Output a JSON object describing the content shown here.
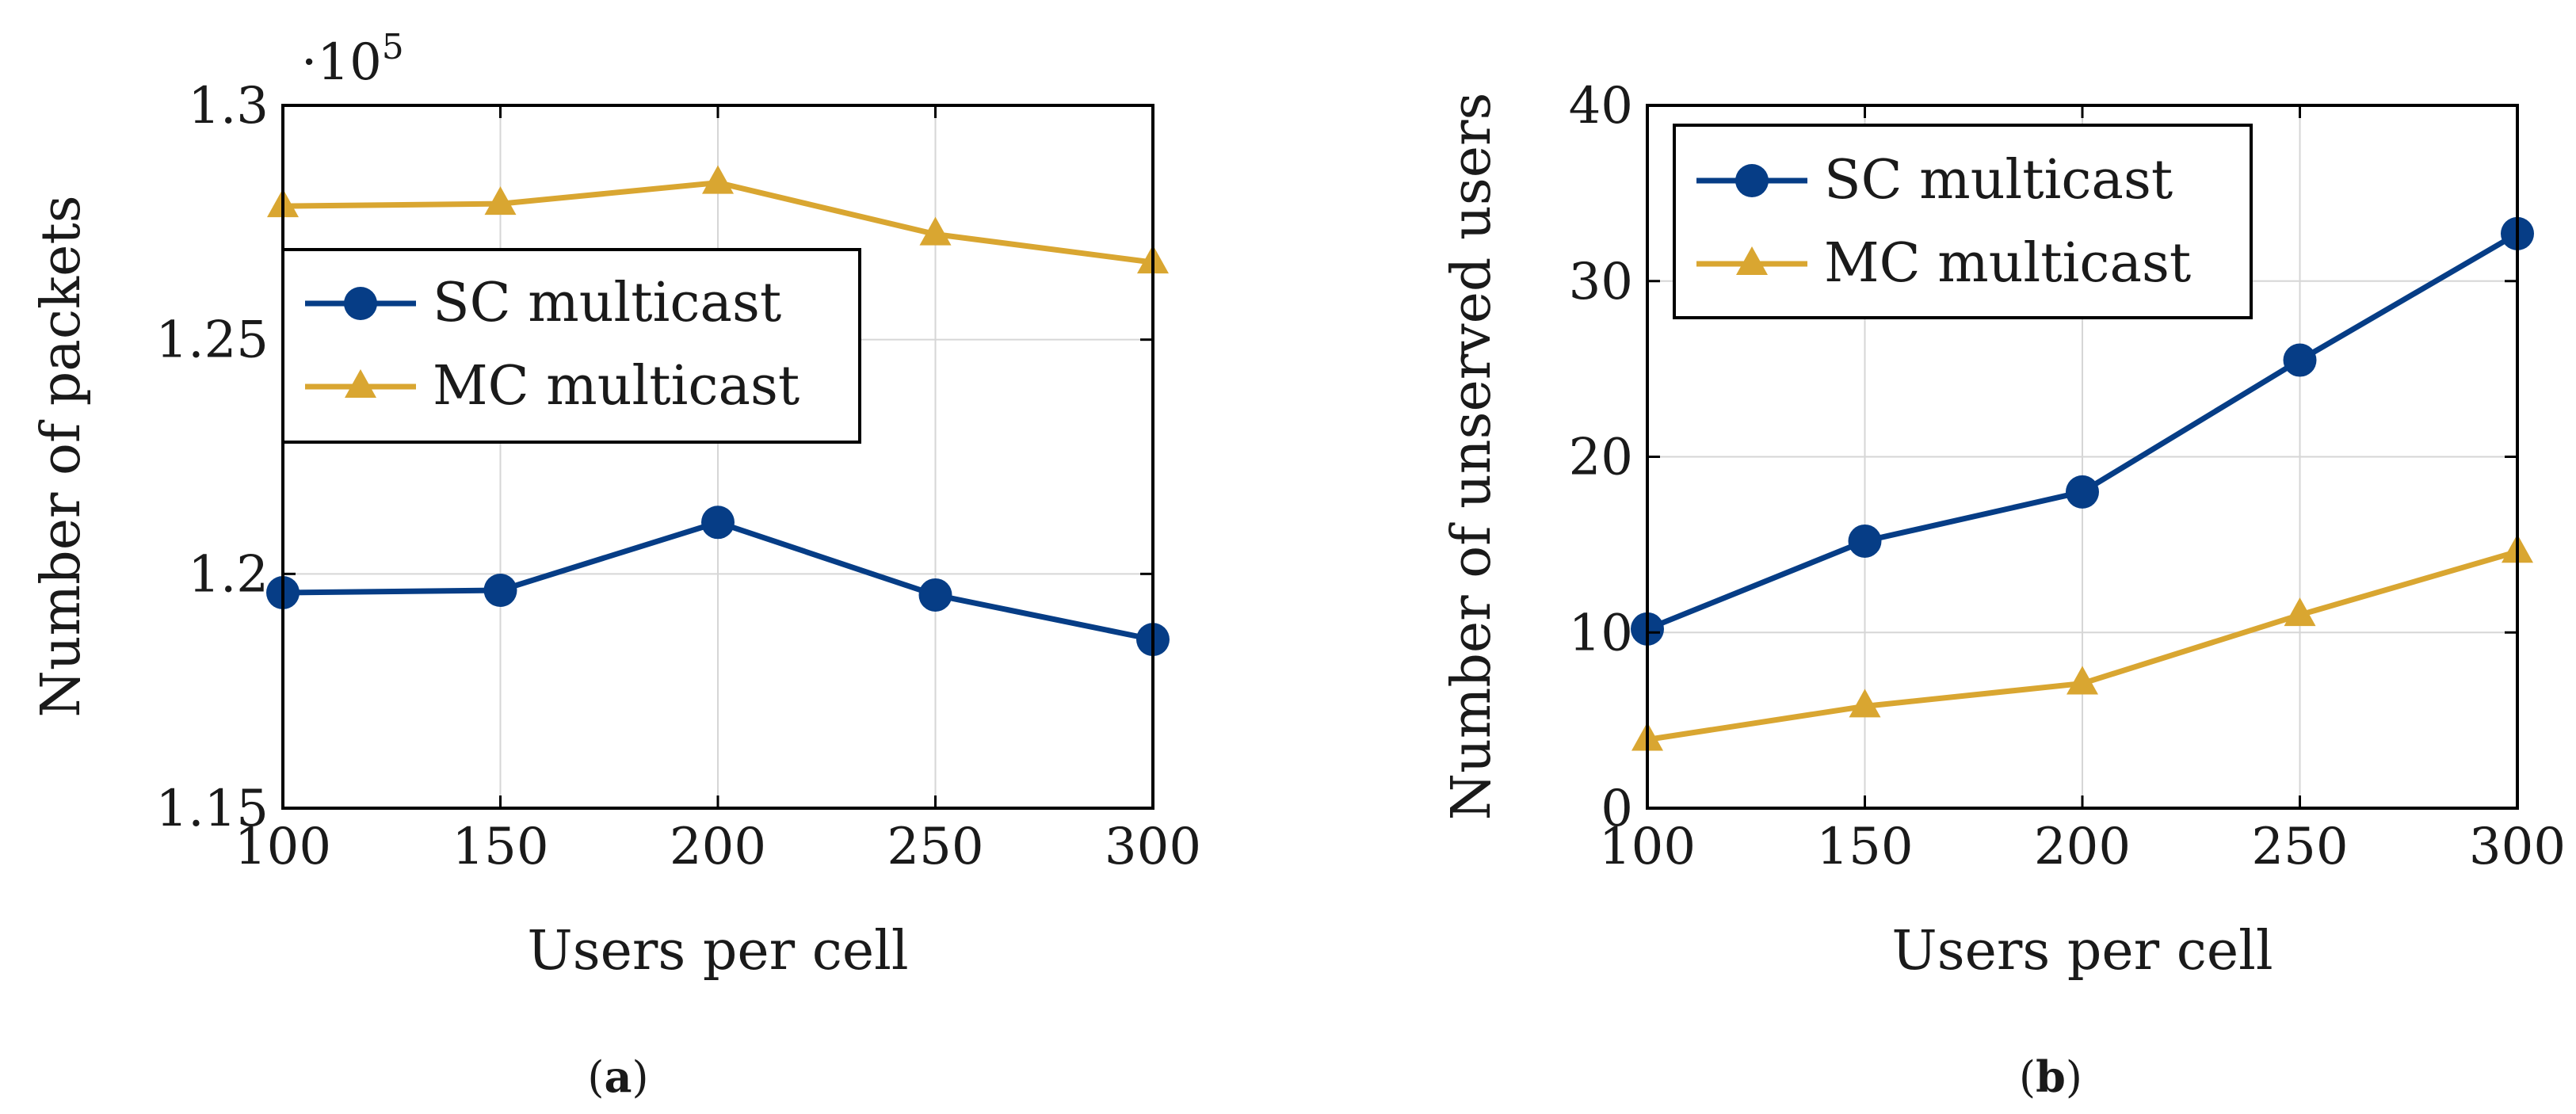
{
  "colors": {
    "sc": "#063d86",
    "mc": "#d9a631",
    "grid": "#d6d6d6",
    "axis": "#000000"
  },
  "chart_data": [
    {
      "type": "line",
      "caption_letter": "a",
      "xlabel": "Users per cell",
      "ylabel": "Number of packets",
      "x": [
        100,
        150,
        200,
        250,
        300
      ],
      "xlim": [
        100,
        300
      ],
      "ylim": [
        115000,
        130000
      ],
      "x_ticks": [
        100,
        150,
        200,
        250,
        300
      ],
      "y_ticks": [
        115000,
        120000,
        125000,
        130000
      ],
      "y_tick_labels": [
        "1.15",
        "1.2",
        "1.25",
        "1.3"
      ],
      "scale_label": "·10",
      "scale_exponent": "5",
      "legend_position": "upper-left",
      "series": [
        {
          "name": "SC multicast",
          "marker": "circle",
          "color_key": "sc",
          "values": [
            119600,
            119650,
            121100,
            119550,
            118600
          ]
        },
        {
          "name": "MC multicast",
          "marker": "triangle",
          "color_key": "mc",
          "values": [
            127850,
            127900,
            128350,
            127250,
            126650
          ]
        }
      ]
    },
    {
      "type": "line",
      "caption_letter": "b",
      "xlabel": "Users per cell",
      "ylabel": "Number of unserved users",
      "x": [
        100,
        150,
        200,
        250,
        300
      ],
      "xlim": [
        100,
        300
      ],
      "ylim": [
        0,
        40
      ],
      "x_ticks": [
        100,
        150,
        200,
        250,
        300
      ],
      "y_ticks": [
        0,
        10,
        20,
        30,
        40
      ],
      "y_tick_labels": [
        "0",
        "10",
        "20",
        "30",
        "40"
      ],
      "legend_position": "upper-left",
      "series": [
        {
          "name": "SC multicast",
          "marker": "circle",
          "color_key": "sc",
          "values": [
            10.2,
            15.2,
            18.0,
            25.5,
            32.7
          ]
        },
        {
          "name": "MC multicast",
          "marker": "triangle",
          "color_key": "mc",
          "values": [
            3.9,
            5.8,
            7.1,
            11.0,
            14.6
          ]
        }
      ]
    }
  ]
}
